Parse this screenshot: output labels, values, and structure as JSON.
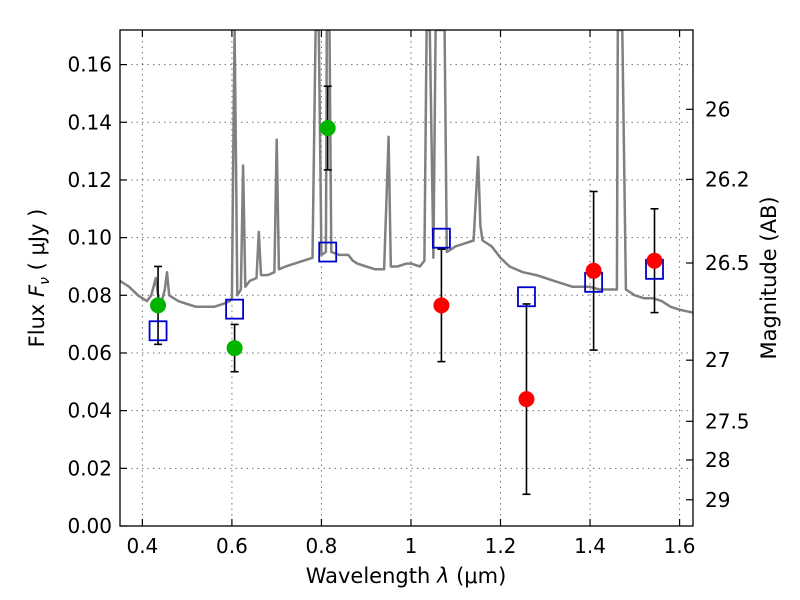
{
  "chart_data": {
    "type": "scatter",
    "xlabel_text": "Wavelength",
    "xlabel_symbol": "λ",
    "xlabel_unit": "(μm)",
    "ylabel_text": "Flux",
    "ylabel_symbol": "F",
    "ylabel_symbol_sub": "ν",
    "ylabel_unit": "( μJy )",
    "y2label": "Magnitude (AB)",
    "xlim": [
      0.35,
      1.63
    ],
    "ylim": [
      0.0,
      0.172
    ],
    "x_ticks": [
      0.4,
      0.6,
      0.8,
      1.0,
      1.2,
      1.4,
      1.6
    ],
    "x_tick_labels": [
      "0.4",
      "0.6",
      "0.8",
      "1",
      "1.2",
      "1.4",
      "1.6"
    ],
    "y_ticks": [
      0.0,
      0.02,
      0.04,
      0.06,
      0.08,
      0.1,
      0.12,
      0.14,
      0.16
    ],
    "y_tick_labels": [
      "0.00",
      "0.02",
      "0.04",
      "0.06",
      "0.08",
      "0.10",
      "0.12",
      "0.14",
      "0.16"
    ],
    "y2_ticks": [
      {
        "label": "26",
        "flux": 0.1445
      },
      {
        "label": "26.2",
        "flux": 0.1202
      },
      {
        "label": "26.5",
        "flux": 0.0912
      },
      {
        "label": "27",
        "flux": 0.0575
      },
      {
        "label": "27.5",
        "flux": 0.0363
      },
      {
        "label": "28",
        "flux": 0.0229
      },
      {
        "label": "29",
        "flux": 0.0091
      }
    ],
    "grid": true,
    "points_green": [
      {
        "x": 0.435,
        "y": 0.0765,
        "err_low": 0.0135,
        "err_high": 0.0135
      },
      {
        "x": 0.606,
        "y": 0.0617,
        "err_low": 0.0082,
        "err_high": 0.0082
      },
      {
        "x": 0.814,
        "y": 0.138,
        "err_low": 0.0145,
        "err_high": 0.0145
      }
    ],
    "points_red": [
      {
        "x": 1.068,
        "y": 0.0765,
        "err_low": 0.0195,
        "err_high": 0.0195
      },
      {
        "x": 1.258,
        "y": 0.044,
        "err_low": 0.033,
        "err_high": 0.033
      },
      {
        "x": 1.408,
        "y": 0.0885,
        "err_low": 0.0275,
        "err_high": 0.0275
      },
      {
        "x": 1.544,
        "y": 0.092,
        "err_low": 0.018,
        "err_high": 0.018
      }
    ],
    "model_bands": [
      {
        "x": 0.435,
        "y": 0.0677
      },
      {
        "x": 0.606,
        "y": 0.0752
      },
      {
        "x": 0.814,
        "y": 0.095
      },
      {
        "x": 1.068,
        "y": 0.0998
      },
      {
        "x": 1.258,
        "y": 0.0795
      },
      {
        "x": 1.408,
        "y": 0.0845
      },
      {
        "x": 1.544,
        "y": 0.089
      }
    ],
    "spectrum": [
      [
        0.35,
        0.085
      ],
      [
        0.37,
        0.083
      ],
      [
        0.39,
        0.08
      ],
      [
        0.41,
        0.078
      ],
      [
        0.42,
        0.08
      ],
      [
        0.43,
        0.086
      ],
      [
        0.435,
        0.08
      ],
      [
        0.44,
        0.076
      ],
      [
        0.45,
        0.082
      ],
      [
        0.455,
        0.088
      ],
      [
        0.46,
        0.08
      ],
      [
        0.48,
        0.078
      ],
      [
        0.5,
        0.077
      ],
      [
        0.52,
        0.076
      ],
      [
        0.54,
        0.076
      ],
      [
        0.56,
        0.076
      ],
      [
        0.58,
        0.077
      ],
      [
        0.595,
        0.078
      ],
      [
        0.6,
        0.079
      ],
      [
        0.603,
        0.13
      ],
      [
        0.606,
        0.172
      ],
      [
        0.609,
        0.13
      ],
      [
        0.612,
        0.08
      ],
      [
        0.62,
        0.082
      ],
      [
        0.625,
        0.125
      ],
      [
        0.63,
        0.083
      ],
      [
        0.64,
        0.085
      ],
      [
        0.655,
        0.086
      ],
      [
        0.66,
        0.102
      ],
      [
        0.665,
        0.087
      ],
      [
        0.68,
        0.087
      ],
      [
        0.695,
        0.088
      ],
      [
        0.7,
        0.134
      ],
      [
        0.705,
        0.089
      ],
      [
        0.72,
        0.09
      ],
      [
        0.74,
        0.091
      ],
      [
        0.76,
        0.092
      ],
      [
        0.78,
        0.093
      ],
      [
        0.787,
        0.172
      ],
      [
        0.794,
        0.172
      ],
      [
        0.8,
        0.094
      ],
      [
        0.81,
        0.095
      ],
      [
        0.812,
        0.172
      ],
      [
        0.818,
        0.172
      ],
      [
        0.822,
        0.095
      ],
      [
        0.84,
        0.094
      ],
      [
        0.86,
        0.094
      ],
      [
        0.87,
        0.092
      ],
      [
        0.88,
        0.091
      ],
      [
        0.9,
        0.09
      ],
      [
        0.92,
        0.089
      ],
      [
        0.94,
        0.089
      ],
      [
        0.95,
        0.135
      ],
      [
        0.955,
        0.09
      ],
      [
        0.97,
        0.09
      ],
      [
        0.99,
        0.091
      ],
      [
        1.0,
        0.091
      ],
      [
        1.02,
        0.09
      ],
      [
        1.03,
        0.092
      ],
      [
        1.035,
        0.172
      ],
      [
        1.042,
        0.172
      ],
      [
        1.05,
        0.093
      ],
      [
        1.055,
        0.172
      ],
      [
        1.062,
        0.172
      ],
      [
        1.068,
        0.172
      ],
      [
        1.075,
        0.172
      ],
      [
        1.08,
        0.095
      ],
      [
        1.09,
        0.096
      ],
      [
        1.1,
        0.097
      ],
      [
        1.12,
        0.098
      ],
      [
        1.14,
        0.099
      ],
      [
        1.15,
        0.128
      ],
      [
        1.155,
        0.104
      ],
      [
        1.16,
        0.099
      ],
      [
        1.18,
        0.097
      ],
      [
        1.2,
        0.093
      ],
      [
        1.22,
        0.09
      ],
      [
        1.25,
        0.088
      ],
      [
        1.28,
        0.087
      ],
      [
        1.3,
        0.086
      ],
      [
        1.32,
        0.085
      ],
      [
        1.34,
        0.084
      ],
      [
        1.36,
        0.083
      ],
      [
        1.38,
        0.083
      ],
      [
        1.4,
        0.083
      ],
      [
        1.42,
        0.082
      ],
      [
        1.44,
        0.082
      ],
      [
        1.46,
        0.082
      ],
      [
        1.462,
        0.172
      ],
      [
        1.472,
        0.172
      ],
      [
        1.48,
        0.082
      ],
      [
        1.5,
        0.08
      ],
      [
        1.52,
        0.079
      ],
      [
        1.54,
        0.079
      ],
      [
        1.56,
        0.078
      ],
      [
        1.58,
        0.076
      ],
      [
        1.6,
        0.075
      ],
      [
        1.63,
        0.074
      ]
    ],
    "colors": {
      "spectrum": "#808080",
      "green_points": "#00b400",
      "red_points": "#ff0000",
      "band_boxes": "#0000cc",
      "error_bars": "#000000"
    }
  }
}
